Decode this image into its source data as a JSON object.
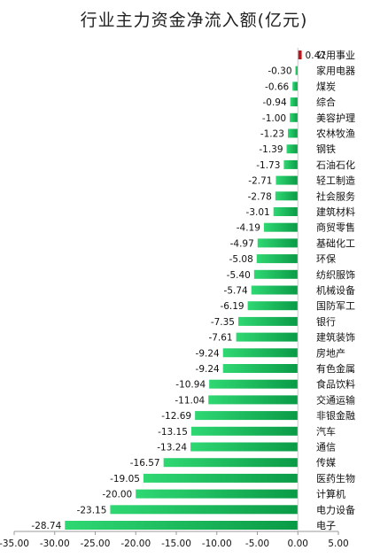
{
  "chart_data": {
    "type": "bar",
    "orientation": "horizontal",
    "title": "行业主力资金净流入额(亿元)",
    "categories": [
      "公用事业",
      "家用电器",
      "煤炭",
      "综合",
      "美容护理",
      "农林牧渔",
      "钢铁",
      "石油石化",
      "轻工制造",
      "社会服务",
      "建筑材料",
      "商贸零售",
      "基础化工",
      "环保",
      "纺织服饰",
      "机械设备",
      "国防军工",
      "银行",
      "建筑装饰",
      "房地产",
      "有色金属",
      "食品饮料",
      "交通运输",
      "非银金融",
      "汽车",
      "通信",
      "传媒",
      "医药生物",
      "计算机",
      "电力设备",
      "电子"
    ],
    "values": [
      0.47,
      -0.3,
      -0.66,
      -0.94,
      -1.0,
      -1.23,
      -1.39,
      -1.73,
      -2.71,
      -2.78,
      -3.01,
      -4.19,
      -4.97,
      -5.08,
      -5.4,
      -5.74,
      -6.19,
      -7.35,
      -7.61,
      -9.24,
      -9.24,
      -10.94,
      -11.04,
      -12.69,
      -13.15,
      -13.24,
      -16.57,
      -19.05,
      -20.0,
      -23.15,
      -28.74
    ],
    "value_labels": [
      "0.47",
      "-0.30",
      "-0.66",
      "-0.94",
      "-1.00",
      "-1.23",
      "-1.39",
      "-1.73",
      "-2.71",
      "-2.78",
      "-3.01",
      "-4.19",
      "-4.97",
      "-5.08",
      "-5.40",
      "-5.74",
      "-6.19",
      "-7.35",
      "-7.61",
      "-9.24",
      "-9.24",
      "-10.94",
      "-11.04",
      "-12.69",
      "-13.15",
      "-13.24",
      "-16.57",
      "-19.05",
      "-20.00",
      "-23.15",
      "-28.74"
    ],
    "xlim": [
      -35,
      5
    ],
    "xticks": [
      "-35.00",
      "-30.00",
      "-25.00",
      "-20.00",
      "-15.00",
      "-10.00",
      "-5.00",
      "0.00",
      "5.00"
    ],
    "grid": false,
    "legend": "none",
    "colors": {
      "positive": "#c0141c",
      "negative_light": "#2fd873",
      "negative_dark": "#0a9a46"
    }
  }
}
